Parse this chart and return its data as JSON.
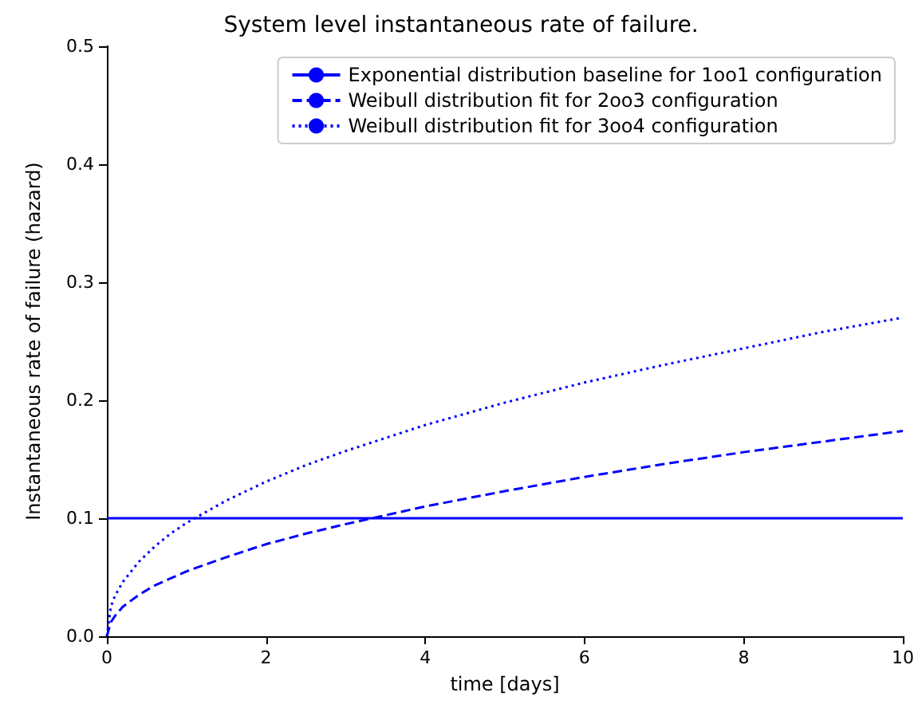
{
  "chart_data": {
    "type": "line",
    "title": "System level instantaneous rate of failure.",
    "xlabel": "time [days]",
    "ylabel": "Instantaneous rate of failure (hazard)",
    "xlim": [
      0,
      10
    ],
    "xticks": [
      0,
      2,
      4,
      6,
      8,
      10
    ],
    "ylim": [
      0,
      0.5
    ],
    "yticks": [
      {
        "value": 0,
        "label": "0.0"
      },
      0.1,
      0.2,
      0.3,
      0.4,
      0.5
    ],
    "grid": false,
    "legend": "top right",
    "marker": "none",
    "series": [
      {
        "name": "Exponential distribution baseline for 1oo1 configuration",
        "color": "#0000ff",
        "line_style": "solid",
        "x": [
          0,
          10
        ],
        "values": [
          0.1,
          0.1
        ]
      },
      {
        "name": "Weibull distribution fit for 2oo3 configuration",
        "color": "#0000ff",
        "line_style": "dashed",
        "x": [
          0,
          0.05,
          0.1,
          0.2,
          0.4,
          0.6,
          0.8,
          1,
          1.5,
          2,
          2.5,
          3,
          4,
          5,
          6,
          7,
          8,
          9,
          10
        ],
        "values": [
          0,
          0.012,
          0.017,
          0.025,
          0.035,
          0.043,
          0.049,
          0.055,
          0.067,
          0.078,
          0.087,
          0.095,
          0.11,
          0.123,
          0.135,
          0.146,
          0.156,
          0.165,
          0.174
        ]
      },
      {
        "name": "Weibull distribution fit for 3oo4 configuration",
        "color": "#0000ff",
        "line_style": "dotted",
        "x": [
          0,
          0.05,
          0.1,
          0.2,
          0.4,
          0.6,
          0.8,
          1,
          1.5,
          2,
          2.5,
          3,
          4,
          5,
          6,
          7,
          8,
          9,
          10
        ],
        "values": [
          0,
          0.025,
          0.034,
          0.046,
          0.063,
          0.076,
          0.087,
          0.096,
          0.115,
          0.131,
          0.145,
          0.157,
          0.179,
          0.198,
          0.215,
          0.23,
          0.244,
          0.258,
          0.27
        ]
      }
    ]
  }
}
